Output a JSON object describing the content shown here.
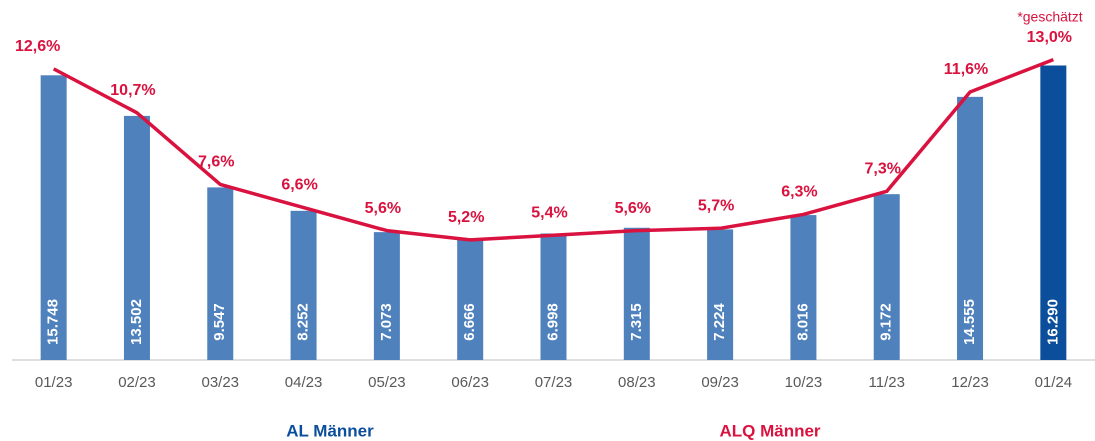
{
  "chart_data": {
    "type": "bar_line",
    "annotation": "*geschätzt",
    "categories": [
      "01/23",
      "02/23",
      "03/23",
      "04/23",
      "05/23",
      "06/23",
      "07/23",
      "08/23",
      "09/23",
      "10/23",
      "11/23",
      "12/23",
      "01/24"
    ],
    "series": [
      {
        "name": "AL Männer",
        "type": "bar",
        "color": "#4f81bd",
        "colors": [
          "#4f81bd",
          "#4f81bd",
          "#4f81bd",
          "#4f81bd",
          "#4f81bd",
          "#4f81bd",
          "#4f81bd",
          "#4f81bd",
          "#4f81bd",
          "#4f81bd",
          "#4f81bd",
          "#4f81bd",
          "#0b4f9c"
        ],
        "values": [
          15748,
          13502,
          9547,
          8252,
          7073,
          6666,
          6998,
          7315,
          7224,
          8016,
          9172,
          14555,
          16290
        ],
        "value_labels": [
          "15.748",
          "13.502",
          "9.547",
          "8.252",
          "7.073",
          "6.666",
          "6.998",
          "7.315",
          "7.224",
          "8.016",
          "9.172",
          "14.555",
          "16.290"
        ]
      },
      {
        "name": "ALQ Männer",
        "type": "line",
        "axis": "y2",
        "color": "#d9123f",
        "values": [
          12.6,
          10.7,
          7.6,
          6.6,
          5.6,
          5.2,
          5.4,
          5.6,
          5.7,
          6.3,
          7.3,
          11.6,
          13.0
        ],
        "value_labels": [
          "12,6%",
          "10,7%",
          "7,6%",
          "6,6%",
          "5,6%",
          "5,2%",
          "5,4%",
          "5,6%",
          "5,7%",
          "6,3%",
          "7,3%",
          "11,6%",
          "13,0%"
        ]
      }
    ],
    "ylim": [
      0,
      17700
    ],
    "y2lim": [
      0,
      13.85
    ]
  }
}
